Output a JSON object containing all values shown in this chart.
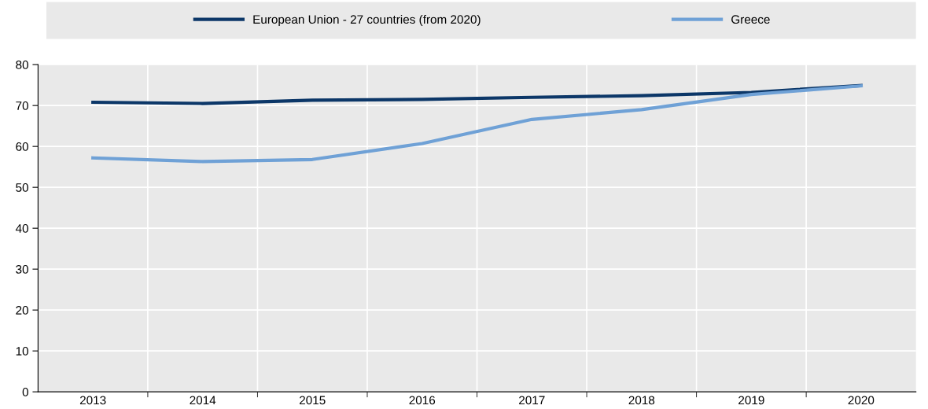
{
  "chart_data": {
    "type": "line",
    "categories": [
      "2013",
      "2014",
      "2015",
      "2016",
      "2017",
      "2018",
      "2019",
      "2020"
    ],
    "series": [
      {
        "name": "European Union - 27 countries (from 2020)",
        "color": "#0c3768",
        "values": [
          70.8,
          70.5,
          71.3,
          71.5,
          72.0,
          72.4,
          73.2,
          74.9
        ]
      },
      {
        "name": "Greece",
        "color": "#6fa1d6",
        "values": [
          57.2,
          56.3,
          56.8,
          60.7,
          66.6,
          69.0,
          72.7,
          74.8
        ]
      }
    ],
    "ylim": [
      0,
      80
    ],
    "yticks": [
      0,
      10,
      20,
      30,
      40,
      50,
      60,
      70,
      80
    ],
    "grid": true,
    "legend": "top",
    "marker": "none",
    "line_style": "solid"
  }
}
